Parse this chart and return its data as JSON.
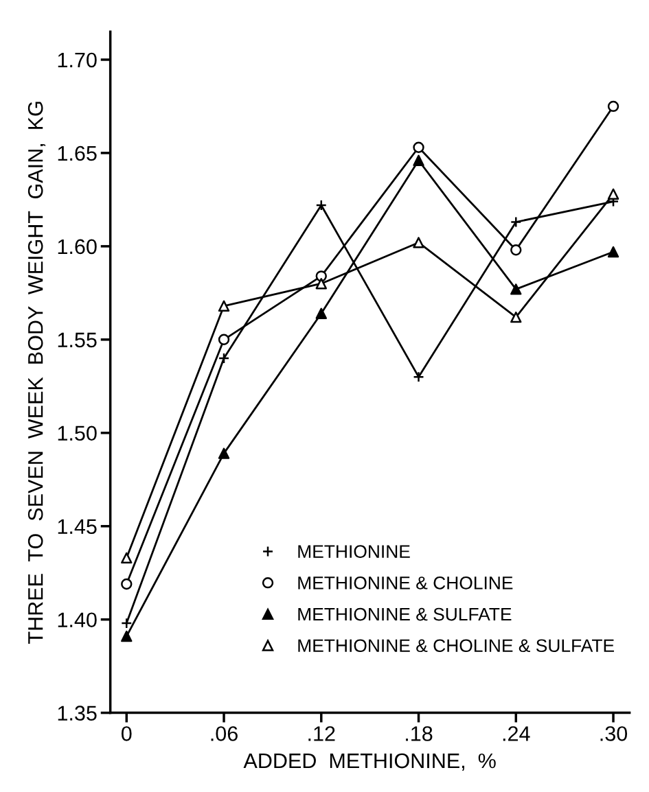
{
  "chart_data": {
    "type": "line",
    "xlabel": "ADDED  METHIONINE,  %",
    "ylabel": "THREE  TO  SEVEN  WEEK  BODY  WEIGHT  GAIN,  KG",
    "x": [
      0,
      0.06,
      0.12,
      0.18,
      0.24,
      0.3
    ],
    "series": [
      {
        "name": "METHIONINE",
        "color": "#000000",
        "marker": "cross",
        "values": [
          1.398,
          1.54,
          1.622,
          1.53,
          1.613,
          1.624
        ]
      },
      {
        "name": "METHIONINE & CHOLINE",
        "color": "#000000",
        "marker": "circle",
        "values": [
          1.419,
          1.55,
          1.584,
          1.653,
          1.598,
          1.675
        ]
      },
      {
        "name": "METHIONINE & SULFATE",
        "color": "#000000",
        "marker": "triangle",
        "colors": [
          "#000000",
          "#000000",
          "#000000",
          "#000000",
          "#000000",
          "#000000"
        ],
        "values": [
          1.391,
          1.489,
          1.564,
          1.646,
          1.577,
          1.597
        ]
      },
      {
        "name": "METHIONINE & CHOLINE & SULFATE",
        "color": "#000000",
        "marker": "triangle",
        "values": [
          1.433,
          1.568,
          1.58,
          1.602,
          1.562,
          1.628
        ]
      }
    ],
    "xlim": [
      -0.01,
      0.31
    ],
    "xticks": [
      {
        "value": 0,
        "label": "0"
      },
      {
        "value": 0.06,
        "label": ".06"
      },
      {
        "value": 0.12,
        "label": ".12"
      },
      {
        "value": 0.18,
        "label": ".18"
      },
      {
        "value": 0.24,
        "label": ".24"
      },
      {
        "value": 0.3,
        "label": ".30"
      }
    ],
    "ylim": [
      1.35,
      1.715
    ],
    "yticks": [
      {
        "value": 1.35,
        "label": "1.35"
      },
      {
        "value": 1.4,
        "label": "1.40"
      },
      {
        "value": 1.45,
        "label": "1.45"
      },
      {
        "value": 1.5,
        "label": "1.50"
      },
      {
        "value": 1.55,
        "label": "1.55"
      },
      {
        "value": 1.6,
        "label": "1.60"
      },
      {
        "value": 1.65,
        "label": "1.65"
      },
      {
        "value": 1.7,
        "label": "1.70"
      }
    ],
    "legend": "bottom",
    "grid": false
  }
}
